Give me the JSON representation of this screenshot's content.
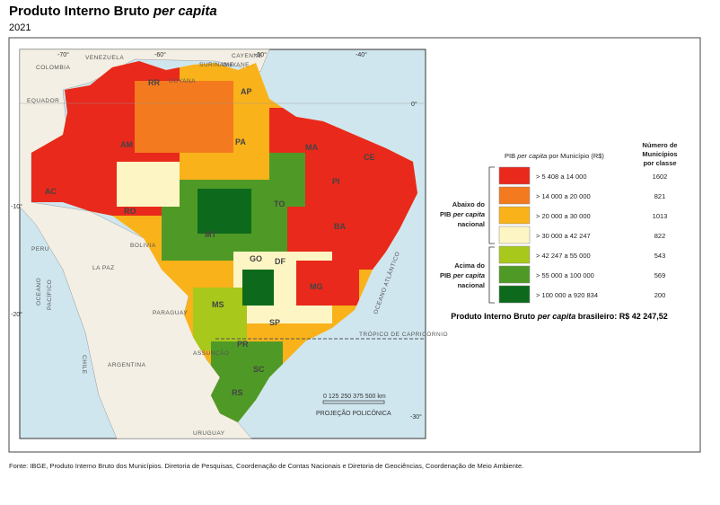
{
  "header": {
    "title": "Produto Interno Bruto",
    "title_italic": "per capita",
    "subtitle": "2021"
  },
  "map": {
    "countries": [
      "COLOMBIA",
      "VENEZUELA",
      "SURINAME",
      "GUYANE",
      "GUYANA",
      "CAYENNE",
      "EQUADOR",
      "PERU",
      "BOLIVIA",
      "LA PAZ",
      "PARAGUAY",
      "ASSUNÇÃO",
      "ARGENTINA",
      "CHILE",
      "URUGUAY"
    ],
    "oceans": [
      "OCEANO",
      "PACÍFICO",
      "OCEANO ATLÂNTICO"
    ],
    "tropic": "TRÓPICO DE CAPRICÓRNIO",
    "states": [
      "RR",
      "AP",
      "AM",
      "PA",
      "MA",
      "AC",
      "RO",
      "MT",
      "TO",
      "BA",
      "GO",
      "DF",
      "MG",
      "MS",
      "SP",
      "PR",
      "SC",
      "RS",
      "PI",
      "CE"
    ],
    "longitudes": [
      "-70°",
      "-60°",
      "-50°",
      "-40°"
    ],
    "latitudes": [
      "0°",
      "-10°",
      "-20°",
      "-30°"
    ],
    "scale": "0  125 250 375 500 km",
    "projection": "PROJEÇÃO POLICÔNICA"
  },
  "legend": {
    "title": "PIB",
    "title_italic": "per capita",
    "title_rest": "por Município (R$)",
    "count_header": [
      "Número de",
      "Municípios",
      "por classe"
    ],
    "below": [
      "Abaixo do",
      "PIB",
      "per capita",
      "nacional"
    ],
    "above": [
      "Acima do",
      "PIB",
      "per capita",
      "nacional"
    ],
    "classes": [
      {
        "range": "> 5 408 a 14 000",
        "count": "1602",
        "color": "#e8291c"
      },
      {
        "range": "> 14 000 a 20 000",
        "count": "821",
        "color": "#f47a1f"
      },
      {
        "range": "> 20 000 a 30 000",
        "count": "1013",
        "color": "#f9b21a"
      },
      {
        "range": "> 30 000 a 42 247",
        "count": "822",
        "color": "#fdf6c4"
      },
      {
        "range": "> 42 247 a 55 000",
        "count": "543",
        "color": "#a8c81c"
      },
      {
        "range": "> 55 000 a 100 000",
        "count": "569",
        "color": "#4f9a26"
      },
      {
        "range": "> 100 000 a 920 834",
        "count": "200",
        "color": "#0d6a1c"
      }
    ]
  },
  "national": {
    "text": "Produto Interno Bruto",
    "italic": "per capita",
    "rest": "brasileiro: R$ 42 247,52"
  },
  "footer": "Fonte: IBGE, Produto Interno Bruto dos Municípios. Diretoria de Pesquisas, Coordenação de Contas Nacionais e Diretoria de Geociências, Coordenação de Meio Ambiente."
}
